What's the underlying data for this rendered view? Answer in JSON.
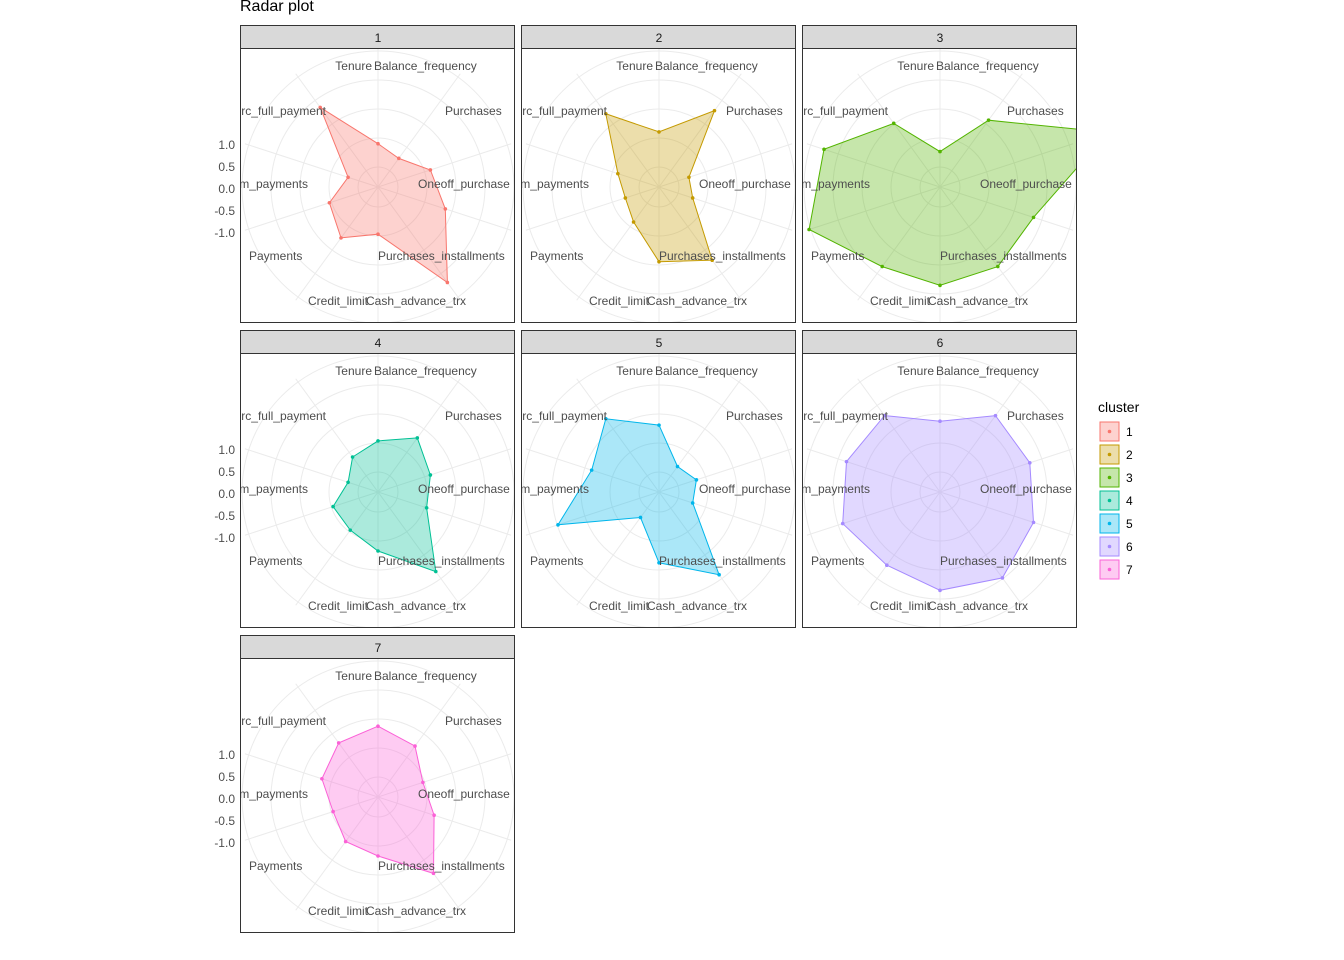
{
  "chart_data": {
    "type": "radar",
    "title": "Radar plot",
    "facet_by": "cluster",
    "variables": [
      "Tenure",
      "Balance_frequency",
      "Purchases",
      "Oneoff_purchase",
      "Purchases_installments",
      "Cash_advance_trx",
      "Credit_limit",
      "Payments",
      "Minimum_payments",
      "Prc_full_payment"
    ],
    "r_ticks": [
      "1.0",
      "0.5",
      "0.0",
      "-0.5",
      "-1.0"
    ],
    "r_range": [
      -1.5,
      1.5
    ],
    "grid": true,
    "legend": {
      "title": "cluster",
      "position": "right"
    },
    "series": [
      {
        "name": "1",
        "color": "#F8766D",
        "values": [
          -0.4,
          -0.6,
          -0.1,
          0.3,
          1.5,
          -0.3,
          0.1,
          -0.2,
          -0.7,
          1.0
        ]
      },
      {
        "name": "2",
        "color": "#C49A00",
        "values": [
          -0.1,
          0.9,
          -0.7,
          -0.6,
          0.8,
          0.4,
          -0.4,
          -0.6,
          -0.4,
          0.8
        ]
      },
      {
        "name": "3",
        "color": "#53B400",
        "values": [
          -0.6,
          0.6,
          3.0,
          1.0,
          1.0,
          1.0,
          1.0,
          2.0,
          1.6,
          0.5
        ]
      },
      {
        "name": "4",
        "color": "#00C094",
        "values": [
          -0.2,
          0.2,
          -0.1,
          -0.2,
          1.0,
          0.0,
          -0.3,
          -0.3,
          -0.7,
          -0.4
        ]
      },
      {
        "name": "5",
        "color": "#00B6EB",
        "values": [
          0.2,
          -0.7,
          -0.5,
          -0.6,
          1.1,
          0.3,
          -0.7,
          1.2,
          0.3,
          0.8
        ]
      },
      {
        "name": "6",
        "color": "#A58AFF",
        "values": [
          0.3,
          0.9,
          0.9,
          1.0,
          1.2,
          1.0,
          0.8,
          1.1,
          1.0,
          0.9
        ]
      },
      {
        "name": "7",
        "color": "#FB61D7",
        "values": [
          0.3,
          0.1,
          -0.3,
          0.0,
          0.9,
          0.0,
          -0.1,
          -0.3,
          0.0,
          0.2
        ]
      }
    ]
  }
}
